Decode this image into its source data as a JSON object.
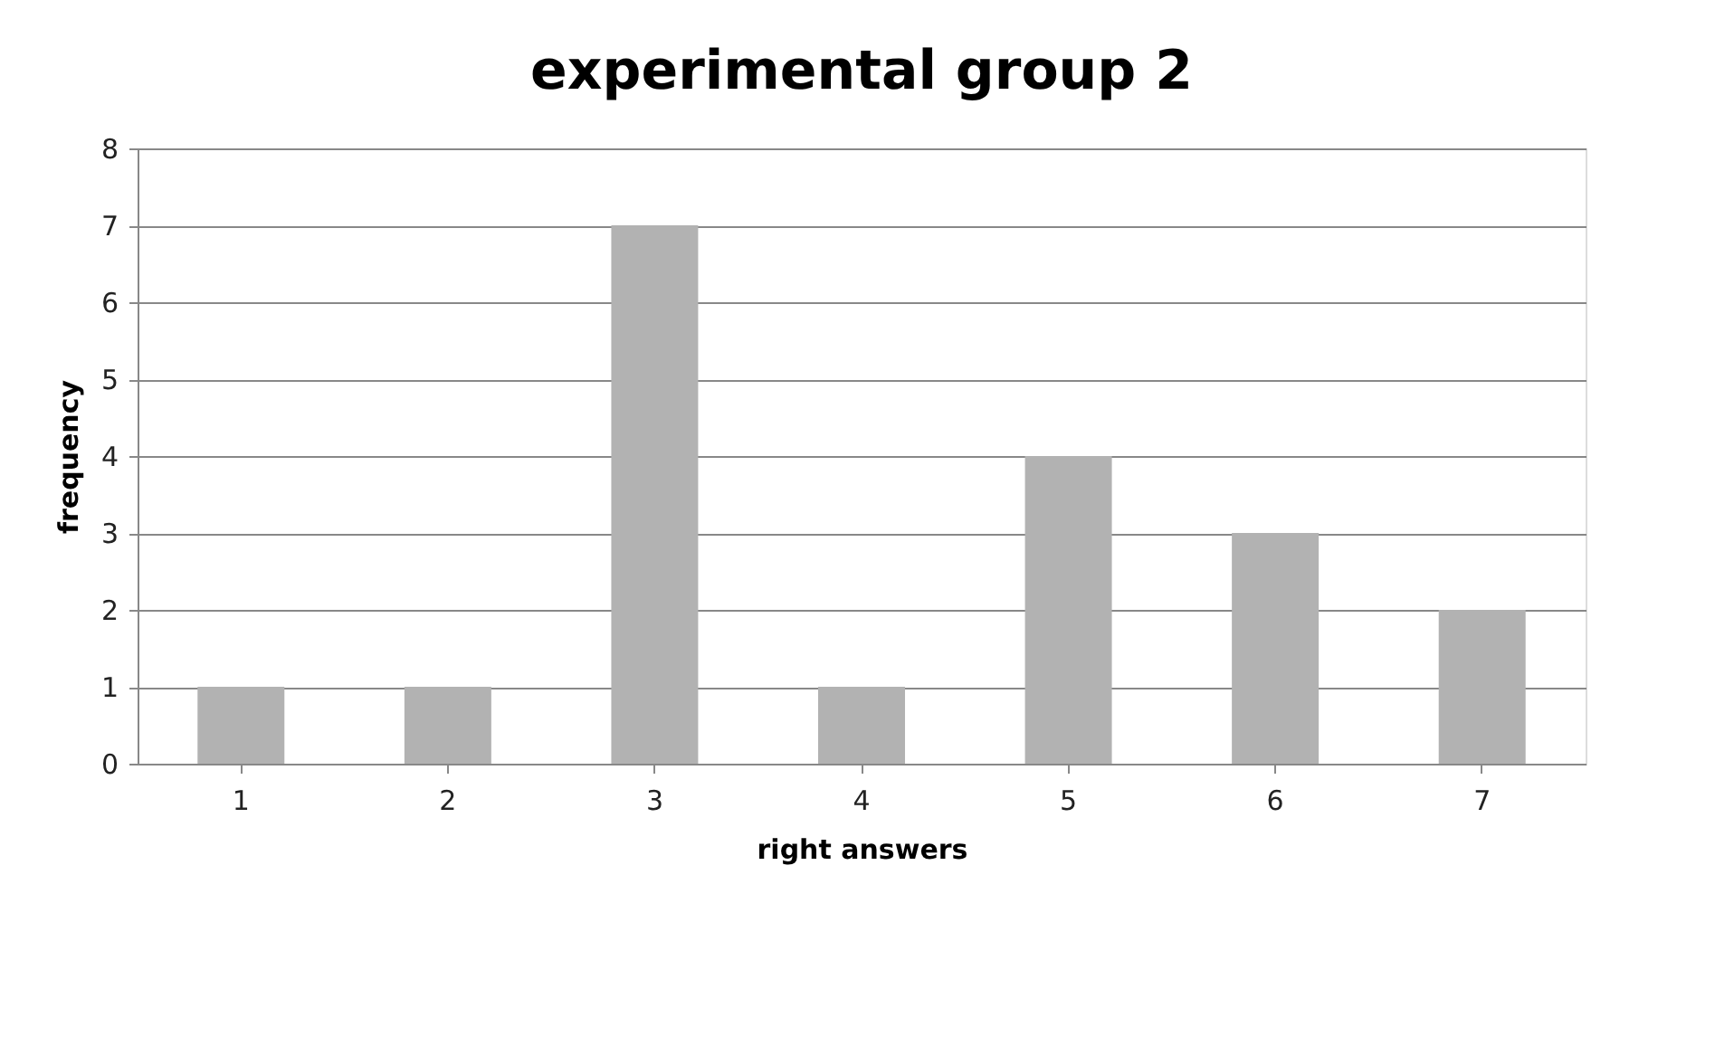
{
  "chart_data": {
    "type": "bar",
    "title": "experimental group 2",
    "xlabel": "right answers",
    "ylabel": "frequency",
    "categories": [
      "1",
      "2",
      "3",
      "4",
      "5",
      "6",
      "7"
    ],
    "values": [
      1,
      1,
      7,
      1,
      4,
      3,
      2
    ],
    "color": "#b2b2b2",
    "ylim": [
      0,
      8
    ],
    "yticks": [
      0,
      1,
      2,
      3,
      4,
      5,
      6,
      7,
      8
    ],
    "grid": "y"
  }
}
